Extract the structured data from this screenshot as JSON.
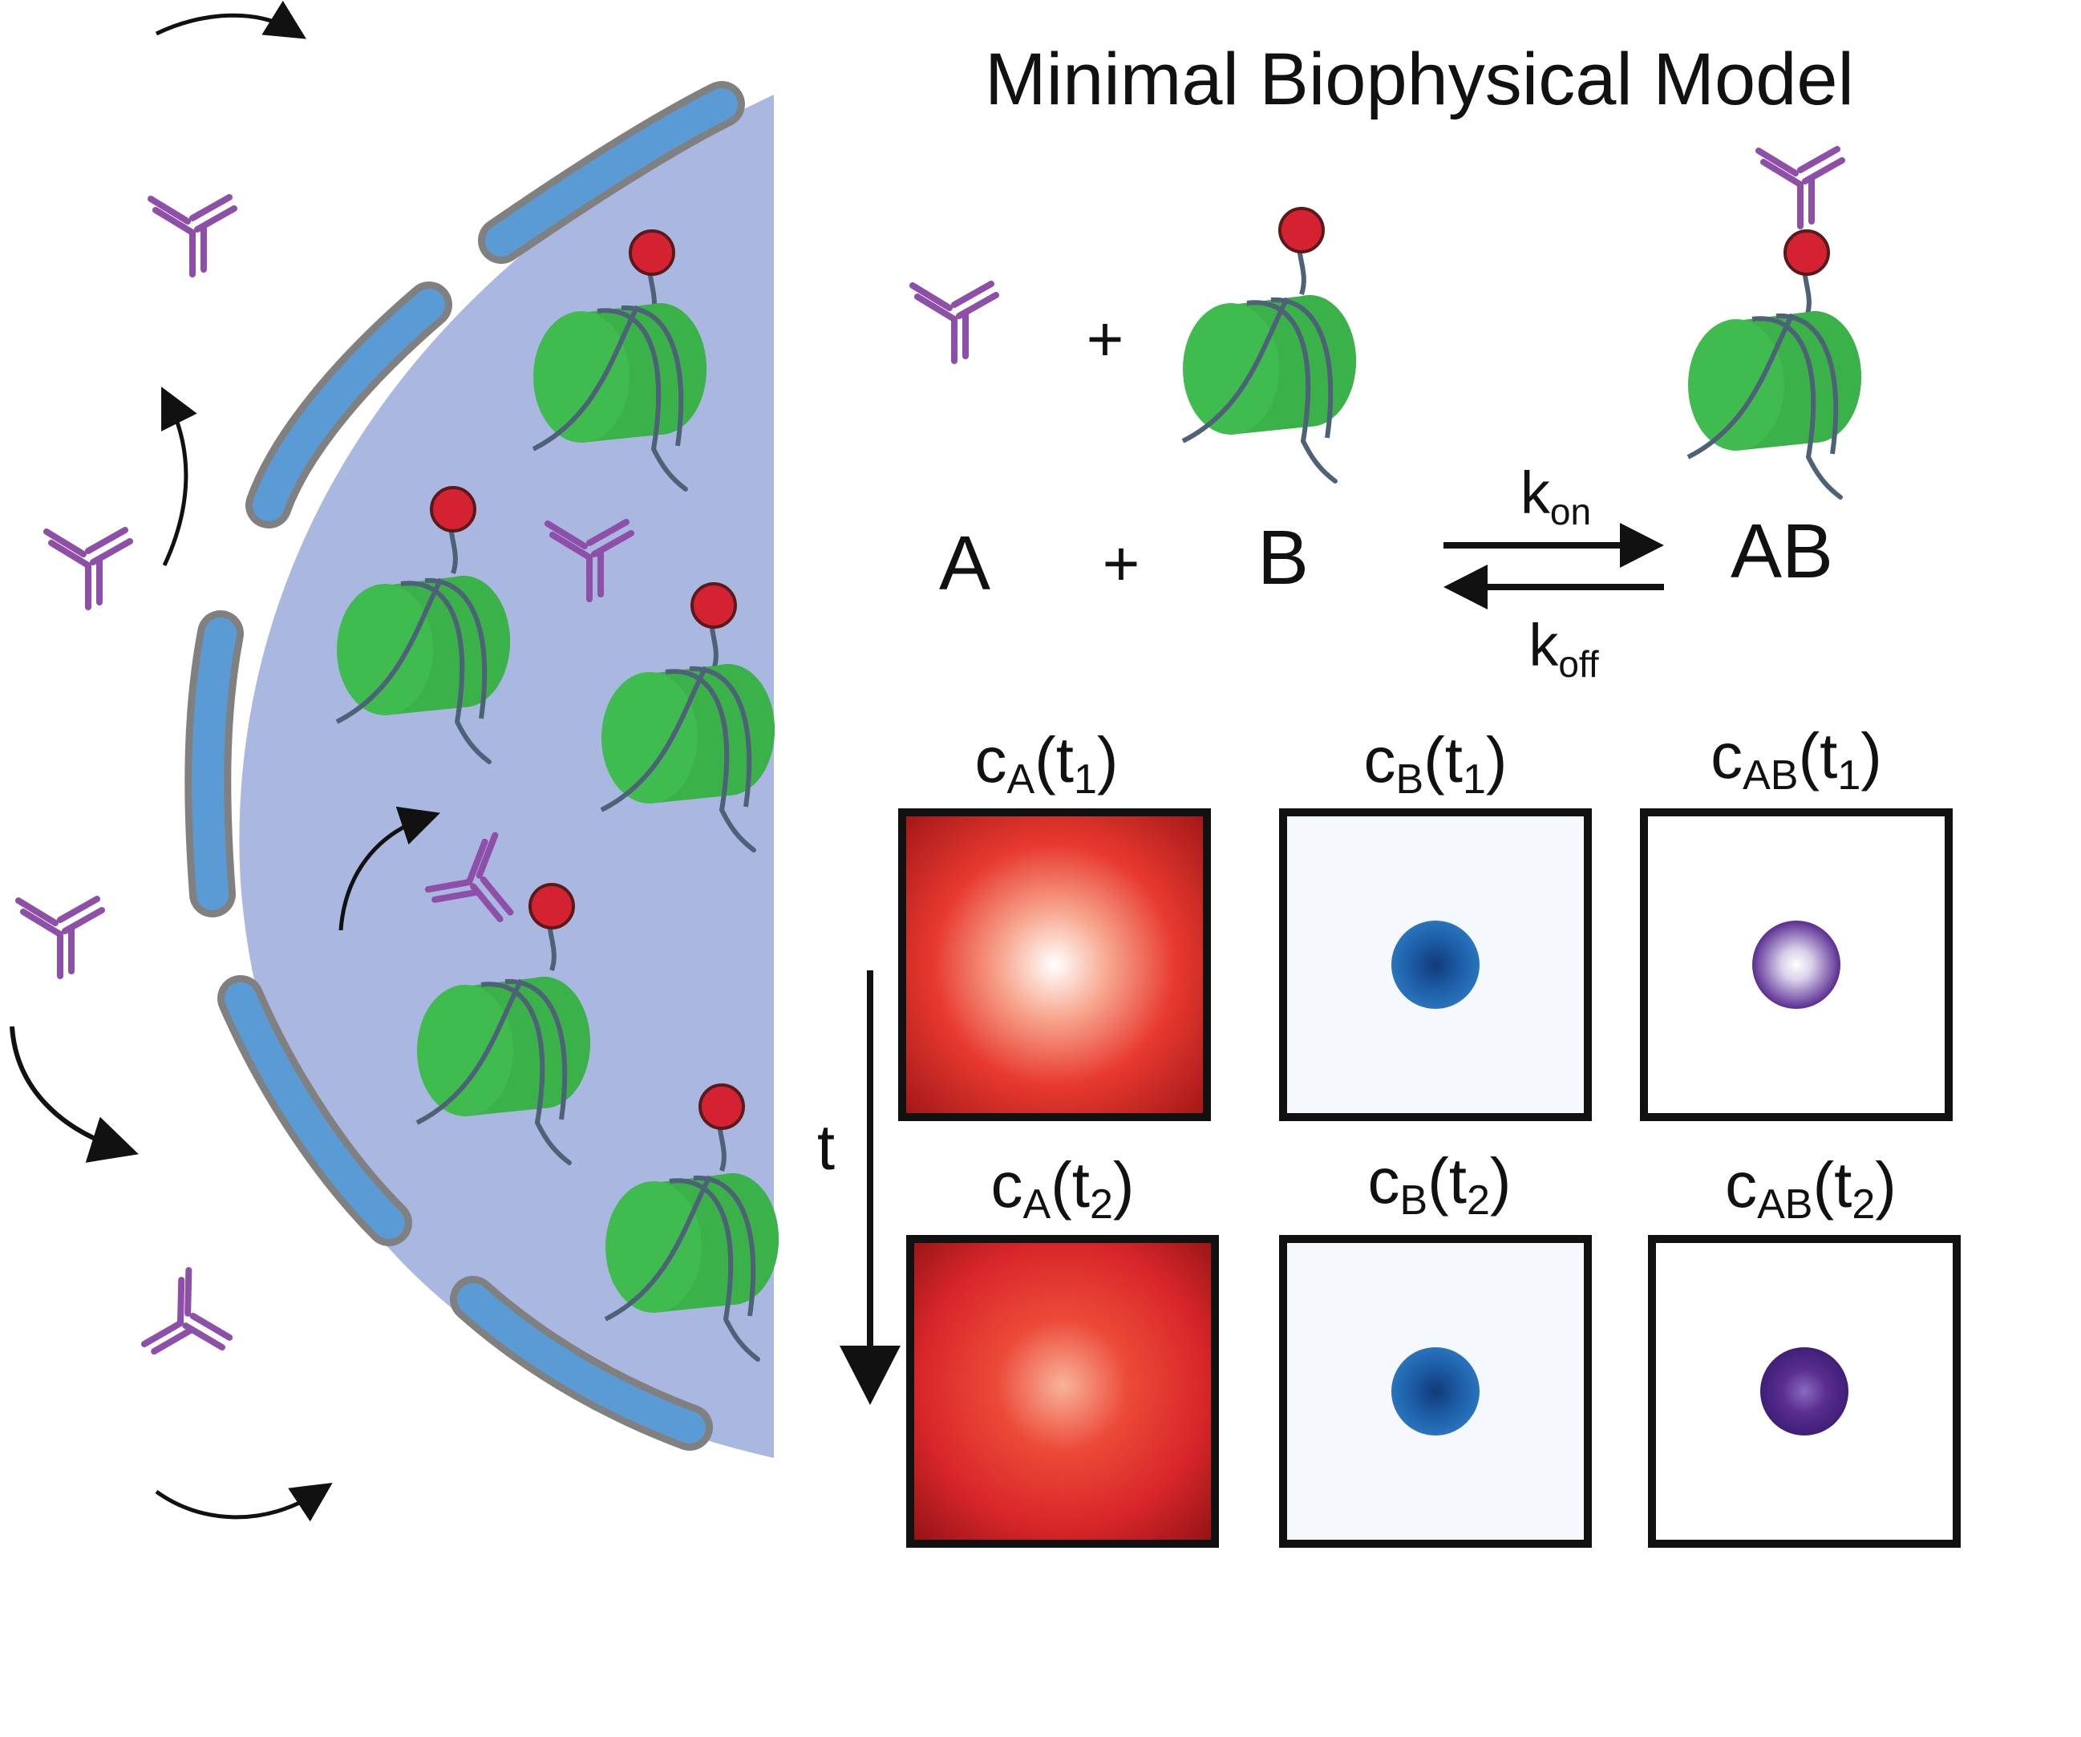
{
  "title": "Minimal Biophysical Model",
  "reaction": {
    "plus": "+",
    "species_a": "A",
    "species_b": "B",
    "product": "AB",
    "k_on": {
      "base": "k",
      "sub": "on"
    },
    "k_off": {
      "base": "k",
      "sub": "off"
    }
  },
  "time_axis_label": "t",
  "panels": [
    {
      "base": "c",
      "sub": "A",
      "time_sub": "1",
      "kind": "antibody-field"
    },
    {
      "base": "c",
      "sub": "B",
      "time_sub": "1",
      "kind": "nucleosome-spot"
    },
    {
      "base": "c",
      "sub": "AB",
      "time_sub": "1",
      "kind": "complex-spot"
    },
    {
      "base": "c",
      "sub": "A",
      "time_sub": "2",
      "kind": "antibody-field"
    },
    {
      "base": "c",
      "sub": "B",
      "time_sub": "2",
      "kind": "nucleosome-spot"
    },
    {
      "base": "c",
      "sub": "AB",
      "time_sub": "2",
      "kind": "complex-spot"
    }
  ],
  "colors": {
    "antibody": "#8e4fa8",
    "nucleosome_green": "#3bb14a",
    "dna_strand": "#4d6277",
    "histone_mark": "#d42233",
    "nucleus_fill": "#aab7e0",
    "envelope_fill": "#5b9bd5",
    "envelope_stroke": "#808080",
    "field_red": "#d8262a",
    "spot_blue": "#1d5fa8",
    "spot_purple": "#5a2d91"
  },
  "icons": [
    "antibody-icon",
    "nucleosome-icon",
    "histone-mark-icon",
    "nuclear-pore-gap",
    "diffusion-arrow-icon"
  ]
}
